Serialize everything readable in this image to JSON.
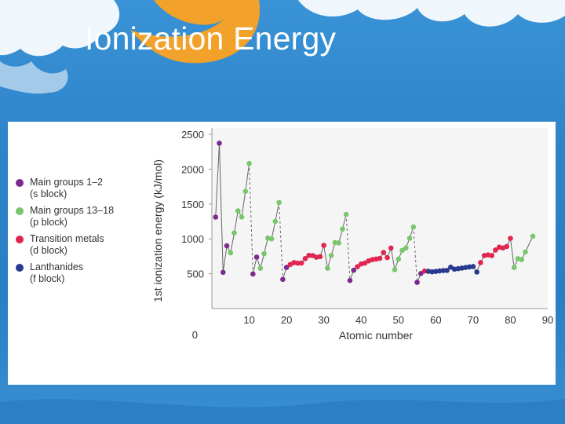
{
  "slide": {
    "title": "Ionization Energy"
  },
  "theme": {
    "background_top": "#3a93d6",
    "background_bottom": "#2a7ec5",
    "accent_orange": "#f2a12a",
    "cloud_white": "#ffffff",
    "plot_background": "#f5f5f5"
  },
  "chart_data": {
    "type": "scatter",
    "title": "",
    "xlabel": "Atomic number",
    "ylabel": "1st ionization energy (kJ/mol)",
    "xlim": [
      0,
      90
    ],
    "ylim": [
      0,
      2500
    ],
    "xticks": [
      10,
      20,
      30,
      40,
      50,
      60,
      70,
      80,
      90
    ],
    "yticks": [
      500,
      1000,
      1500,
      2000,
      2500
    ],
    "y_zero_label": "0",
    "legend_position": "left",
    "grid": false,
    "connect_points": true,
    "legend": [
      {
        "key": "s",
        "label": "Main groups 1–2\n(s block)",
        "color": "#7b2a8f"
      },
      {
        "key": "p",
        "label": "Main groups 13–18\n(p block)",
        "color": "#79c66d"
      },
      {
        "key": "d",
        "label": "Transition metals\n(d block)",
        "color": "#e0254f"
      },
      {
        "key": "f",
        "label": "Lanthanides\n(f block)",
        "color": "#28398f"
      }
    ],
    "points": [
      {
        "x": 1,
        "y": 1312,
        "block": "s"
      },
      {
        "x": 2,
        "y": 2372,
        "block": "s"
      },
      {
        "x": 3,
        "y": 520,
        "block": "s"
      },
      {
        "x": 4,
        "y": 900,
        "block": "s"
      },
      {
        "x": 5,
        "y": 801,
        "block": "p"
      },
      {
        "x": 6,
        "y": 1086,
        "block": "p"
      },
      {
        "x": 7,
        "y": 1402,
        "block": "p"
      },
      {
        "x": 8,
        "y": 1314,
        "block": "p"
      },
      {
        "x": 9,
        "y": 1681,
        "block": "p"
      },
      {
        "x": 10,
        "y": 2081,
        "block": "p"
      },
      {
        "x": 11,
        "y": 496,
        "block": "s"
      },
      {
        "x": 12,
        "y": 738,
        "block": "s"
      },
      {
        "x": 13,
        "y": 578,
        "block": "p"
      },
      {
        "x": 14,
        "y": 787,
        "block": "p"
      },
      {
        "x": 15,
        "y": 1012,
        "block": "p"
      },
      {
        "x": 16,
        "y": 1000,
        "block": "p"
      },
      {
        "x": 17,
        "y": 1251,
        "block": "p"
      },
      {
        "x": 18,
        "y": 1521,
        "block": "p"
      },
      {
        "x": 19,
        "y": 419,
        "block": "s"
      },
      {
        "x": 20,
        "y": 590,
        "block": "s"
      },
      {
        "x": 21,
        "y": 633,
        "block": "d"
      },
      {
        "x": 22,
        "y": 659,
        "block": "d"
      },
      {
        "x": 23,
        "y": 651,
        "block": "d"
      },
      {
        "x": 24,
        "y": 653,
        "block": "d"
      },
      {
        "x": 25,
        "y": 717,
        "block": "d"
      },
      {
        "x": 26,
        "y": 762,
        "block": "d"
      },
      {
        "x": 27,
        "y": 760,
        "block": "d"
      },
      {
        "x": 28,
        "y": 737,
        "block": "d"
      },
      {
        "x": 29,
        "y": 745,
        "block": "d"
      },
      {
        "x": 30,
        "y": 906,
        "block": "d"
      },
      {
        "x": 31,
        "y": 579,
        "block": "p"
      },
      {
        "x": 32,
        "y": 762,
        "block": "p"
      },
      {
        "x": 33,
        "y": 947,
        "block": "p"
      },
      {
        "x": 34,
        "y": 941,
        "block": "p"
      },
      {
        "x": 35,
        "y": 1140,
        "block": "p"
      },
      {
        "x": 36,
        "y": 1351,
        "block": "p"
      },
      {
        "x": 37,
        "y": 403,
        "block": "s"
      },
      {
        "x": 38,
        "y": 550,
        "block": "s"
      },
      {
        "x": 39,
        "y": 600,
        "block": "d"
      },
      {
        "x": 40,
        "y": 640,
        "block": "d"
      },
      {
        "x": 41,
        "y": 652,
        "block": "d"
      },
      {
        "x": 42,
        "y": 684,
        "block": "d"
      },
      {
        "x": 43,
        "y": 702,
        "block": "d"
      },
      {
        "x": 44,
        "y": 710,
        "block": "d"
      },
      {
        "x": 45,
        "y": 720,
        "block": "d"
      },
      {
        "x": 46,
        "y": 804,
        "block": "d"
      },
      {
        "x": 47,
        "y": 731,
        "block": "d"
      },
      {
        "x": 48,
        "y": 868,
        "block": "d"
      },
      {
        "x": 49,
        "y": 558,
        "block": "p"
      },
      {
        "x": 50,
        "y": 709,
        "block": "p"
      },
      {
        "x": 51,
        "y": 834,
        "block": "p"
      },
      {
        "x": 52,
        "y": 869,
        "block": "p"
      },
      {
        "x": 53,
        "y": 1008,
        "block": "p"
      },
      {
        "x": 54,
        "y": 1170,
        "block": "p"
      },
      {
        "x": 55,
        "y": 376,
        "block": "s"
      },
      {
        "x": 56,
        "y": 503,
        "block": "s"
      },
      {
        "x": 57,
        "y": 538,
        "block": "d"
      },
      {
        "x": 58,
        "y": 534,
        "block": "f"
      },
      {
        "x": 59,
        "y": 527,
        "block": "f"
      },
      {
        "x": 60,
        "y": 533,
        "block": "f"
      },
      {
        "x": 61,
        "y": 540,
        "block": "f"
      },
      {
        "x": 62,
        "y": 545,
        "block": "f"
      },
      {
        "x": 63,
        "y": 547,
        "block": "f"
      },
      {
        "x": 64,
        "y": 593,
        "block": "f"
      },
      {
        "x": 65,
        "y": 566,
        "block": "f"
      },
      {
        "x": 66,
        "y": 573,
        "block": "f"
      },
      {
        "x": 67,
        "y": 581,
        "block": "f"
      },
      {
        "x": 68,
        "y": 589,
        "block": "f"
      },
      {
        "x": 69,
        "y": 597,
        "block": "f"
      },
      {
        "x": 70,
        "y": 603,
        "block": "f"
      },
      {
        "x": 71,
        "y": 524,
        "block": "f"
      },
      {
        "x": 72,
        "y": 659,
        "block": "d"
      },
      {
        "x": 73,
        "y": 761,
        "block": "d"
      },
      {
        "x": 74,
        "y": 770,
        "block": "d"
      },
      {
        "x": 75,
        "y": 760,
        "block": "d"
      },
      {
        "x": 76,
        "y": 840,
        "block": "d"
      },
      {
        "x": 77,
        "y": 880,
        "block": "d"
      },
      {
        "x": 78,
        "y": 870,
        "block": "d"
      },
      {
        "x": 79,
        "y": 890,
        "block": "d"
      },
      {
        "x": 80,
        "y": 1007,
        "block": "d"
      },
      {
        "x": 81,
        "y": 589,
        "block": "p"
      },
      {
        "x": 82,
        "y": 716,
        "block": "p"
      },
      {
        "x": 83,
        "y": 703,
        "block": "p"
      },
      {
        "x": 84,
        "y": 812,
        "block": "p"
      },
      {
        "x": 86,
        "y": 1037,
        "block": "p"
      }
    ]
  }
}
